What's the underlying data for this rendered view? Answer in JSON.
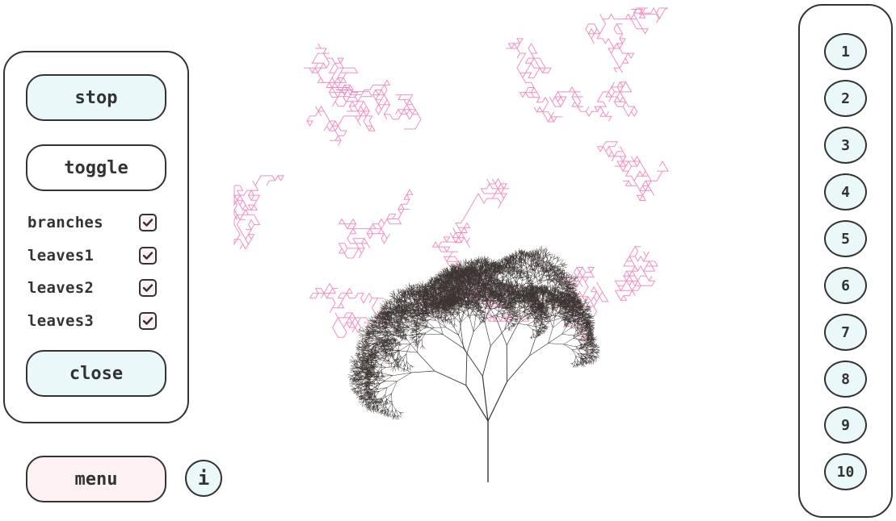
{
  "left_panel": {
    "stop_label": "stop",
    "toggle_label": "toggle",
    "checkboxes": [
      {
        "label": "branches",
        "checked": true
      },
      {
        "label": "leaves1",
        "checked": true
      },
      {
        "label": "leaves2",
        "checked": true
      },
      {
        "label": "leaves3",
        "checked": true
      }
    ],
    "close_label": "close"
  },
  "bottom": {
    "menu_label": "menu",
    "info_label": "i"
  },
  "presets": [
    "1",
    "2",
    "3",
    "4",
    "5",
    "6",
    "7",
    "8",
    "9",
    "10"
  ],
  "colors": {
    "branch": "#3b3431",
    "leaves": "#f07ab8",
    "button_cyan": "#eaf8fa",
    "button_pink": "#fdf1f4"
  },
  "icons": {
    "checkbox": "check-icon",
    "info": "info-icon",
    "canvas": "fractal-tree-canvas"
  }
}
